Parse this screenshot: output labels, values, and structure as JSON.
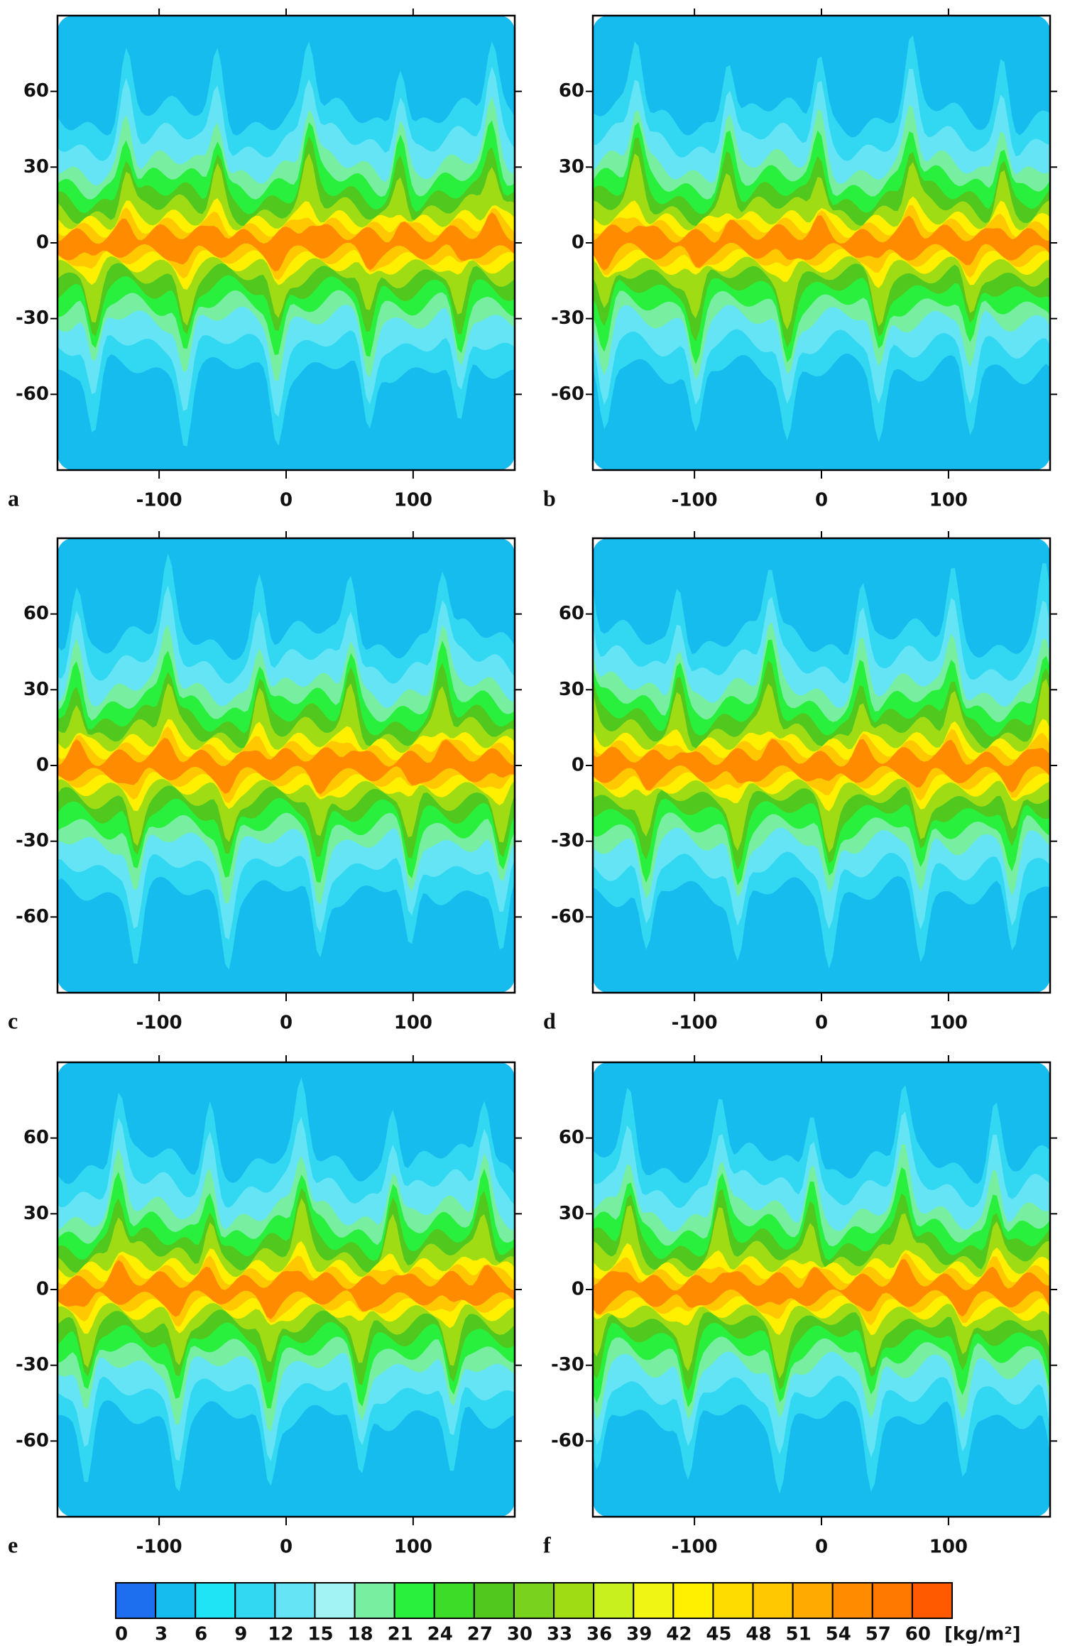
{
  "chart_data": [
    {
      "type": "contour",
      "panel_label": "a",
      "xlim": [
        -180,
        180
      ],
      "ylim": [
        -90,
        90
      ],
      "xticks": [
        -100,
        0,
        100
      ],
      "yticks": [
        60,
        30,
        0,
        -30,
        -60
      ]
    },
    {
      "type": "contour",
      "panel_label": "b",
      "xlim": [
        -180,
        180
      ],
      "ylim": [
        -90,
        90
      ],
      "xticks": [
        -100,
        0,
        100
      ],
      "yticks": [
        60,
        30,
        0,
        -30,
        -60
      ]
    },
    {
      "type": "contour",
      "panel_label": "c",
      "xlim": [
        -180,
        180
      ],
      "ylim": [
        -90,
        90
      ],
      "xticks": [
        -100,
        0,
        100
      ],
      "yticks": [
        60,
        30,
        0,
        -30,
        -60
      ]
    },
    {
      "type": "contour",
      "panel_label": "d",
      "xlim": [
        -180,
        180
      ],
      "ylim": [
        -90,
        90
      ],
      "xticks": [
        -100,
        0,
        100
      ],
      "yticks": [
        60,
        30,
        0,
        -30,
        -60
      ]
    },
    {
      "type": "contour",
      "panel_label": "e",
      "xlim": [
        -180,
        180
      ],
      "ylim": [
        -90,
        90
      ],
      "xticks": [
        -100,
        0,
        100
      ],
      "yticks": [
        60,
        30,
        0,
        -30,
        -60
      ]
    },
    {
      "type": "contour",
      "panel_label": "f",
      "xlim": [
        -180,
        180
      ],
      "ylim": [
        -90,
        90
      ],
      "xticks": [
        -100,
        0,
        100
      ],
      "yticks": [
        60,
        30,
        0,
        -30,
        -60
      ]
    }
  ],
  "colorbar": {
    "levels": [
      0,
      3,
      6,
      9,
      12,
      15,
      18,
      21,
      24,
      27,
      30,
      33,
      36,
      39,
      42,
      45,
      48,
      51,
      54,
      57,
      60
    ],
    "colors": [
      "#1e6ef0",
      "#16bcee",
      "#1ee4f5",
      "#32d8f2",
      "#64e4f5",
      "#a2f4f4",
      "#78eea0",
      "#28f03c",
      "#3cdc28",
      "#50c81e",
      "#78d21e",
      "#a0dc14",
      "#c8f01e",
      "#f0f514",
      "#fff000",
      "#ffdc00",
      "#ffc800",
      "#ffaa00",
      "#ff8c00",
      "#ff7800",
      "#ff5a00"
    ],
    "unit": "[kg/m²]"
  }
}
